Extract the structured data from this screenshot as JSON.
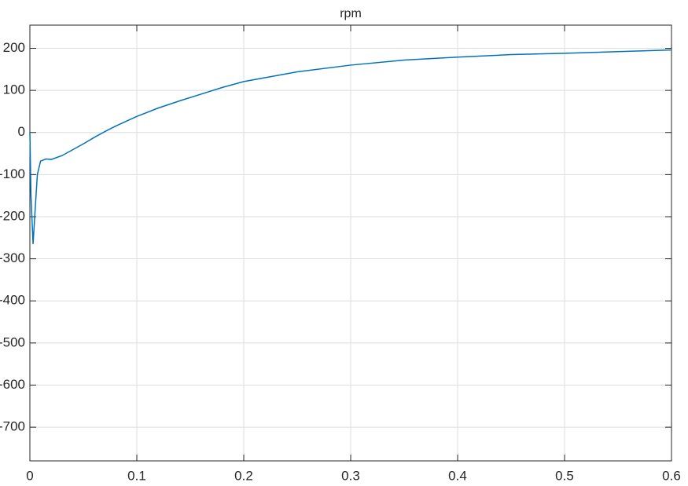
{
  "chart_data": {
    "type": "line",
    "title": "rpm",
    "x": [
      0,
      0.001,
      0.003,
      0.005,
      0.007,
      0.01,
      0.015,
      0.02,
      0.03,
      0.04,
      0.05,
      0.06,
      0.07,
      0.08,
      0.1,
      0.12,
      0.14,
      0.16,
      0.18,
      0.2,
      0.25,
      0.3,
      0.35,
      0.4,
      0.45,
      0.5,
      0.55,
      0.6
    ],
    "series": [
      {
        "name": "rpm",
        "color": "#0072bd",
        "values": [
          0,
          -150,
          -265,
          -180,
          -100,
          -68,
          -63,
          -64,
          -55,
          -41,
          -27,
          -12,
          2,
          15,
          38,
          58,
          75,
          91,
          107,
          121,
          144,
          160,
          172,
          179,
          185,
          188,
          192,
          196
        ]
      }
    ],
    "xlim": [
      0,
      0.6
    ],
    "xticks": [
      0,
      0.1,
      0.2,
      0.3,
      0.4,
      0.5,
      0.6
    ],
    "ylim": [
      -780,
      255
    ],
    "yticks": [
      -700,
      -600,
      -500,
      -400,
      -300,
      -200,
      -100,
      0,
      100,
      200
    ],
    "grid": true
  }
}
